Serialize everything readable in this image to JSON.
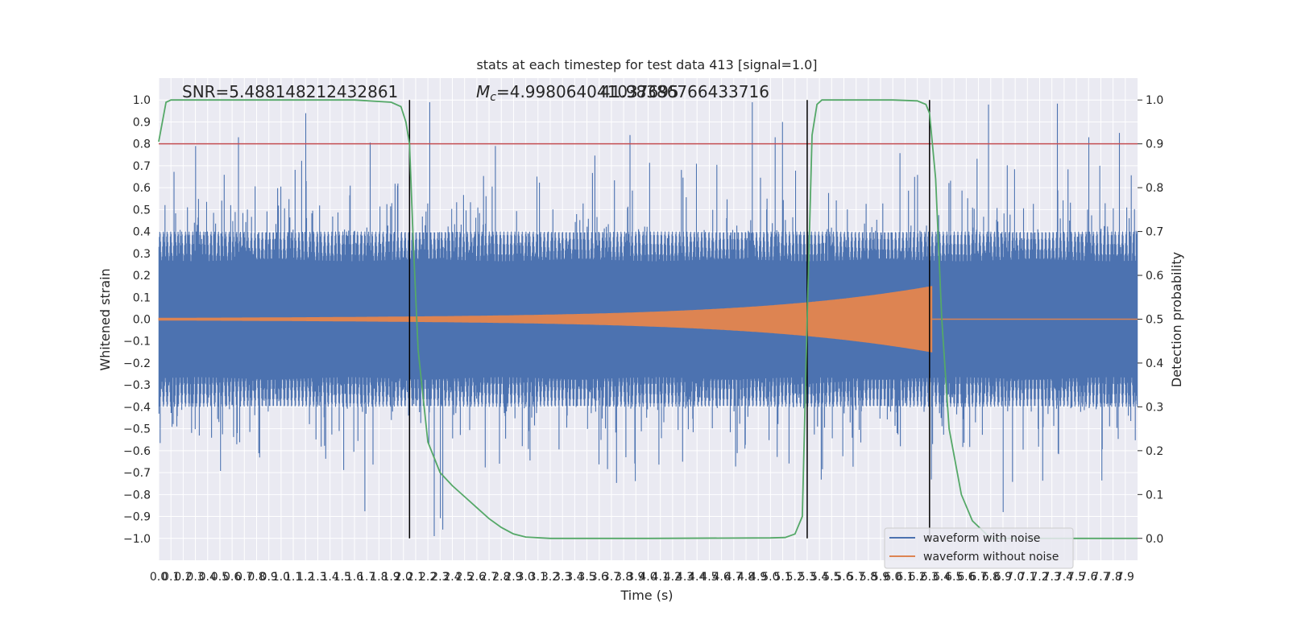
{
  "chart_data": {
    "type": "line",
    "title": "stats at each timestep for test data 413 [signal=1.0]",
    "xlabel": "Time (s)",
    "ylabel_left": "Whitened strain",
    "ylabel_right": "Detection probability",
    "xlim": [
      0,
      8.0
    ],
    "ylim_left": [
      -1.1,
      1.1
    ],
    "ylim_right": [
      -0.05,
      1.05
    ],
    "x_ticks": [
      "0.0",
      "0.1",
      "0.2",
      "0.3",
      "0.4",
      "0.5",
      "0.6",
      "0.7",
      "0.8",
      "0.9",
      "1.0",
      "1.1",
      "1.2",
      "1.3",
      "1.4",
      "1.5",
      "1.6",
      "1.7",
      "1.8",
      "1.9",
      "2.0",
      "2.1",
      "2.2",
      "2.3",
      "2.4",
      "2.5",
      "2.6",
      "2.7",
      "2.8",
      "2.9",
      "3.0",
      "3.1",
      "3.2",
      "3.3",
      "3.4",
      "3.5",
      "3.6",
      "3.7",
      "3.8",
      "3.9",
      "4.0",
      "4.1",
      "4.2",
      "4.3",
      "4.4",
      "4.5",
      "4.6",
      "4.7",
      "4.8",
      "4.9",
      "5.0",
      "5.1",
      "5.2",
      "5.3",
      "5.4",
      "5.5",
      "5.6",
      "5.7",
      "5.8",
      "5.9",
      "6.0",
      "6.1",
      "6.2",
      "6.3",
      "6.4",
      "6.5",
      "6.6",
      "6.7",
      "6.8",
      "6.9",
      "7.0",
      "7.1",
      "7.2",
      "7.3",
      "7.4",
      "7.5",
      "7.6",
      "7.7",
      "7.8",
      "7.9"
    ],
    "y_ticks_left": [
      "1.0",
      "0.9",
      "0.8",
      "0.7",
      "0.6",
      "0.5",
      "0.4",
      "0.3",
      "0.2",
      "0.1",
      "0.0",
      "−0.1",
      "−0.2",
      "−0.3",
      "−0.4",
      "−0.5",
      "−0.6",
      "−0.7",
      "−0.8",
      "−0.9",
      "−1.0"
    ],
    "y_ticks_right": [
      "1.0",
      "0.9",
      "0.8",
      "0.7",
      "0.6",
      "0.5",
      "0.4",
      "0.3",
      "0.2",
      "0.1",
      "0.0"
    ],
    "grid": true,
    "legend_placement": "lower-right",
    "legend": [
      "waveform with noise",
      "waveform without noise"
    ],
    "annotations": {
      "snr": "SNR=5.488148212432861",
      "mc": "=4.998064041037695",
      "mc_symbol": "M",
      "mc_sub": "c",
      "overlap_value": "41.98386766433716"
    },
    "threshold": 0.9,
    "vertical_lines": [
      2.05,
      5.3,
      6.3
    ],
    "detection_probability": {
      "x": [
        0.0,
        0.06,
        0.1,
        0.2,
        0.4,
        0.8,
        1.2,
        1.6,
        1.9,
        1.98,
        2.02,
        2.05,
        2.08,
        2.12,
        2.2,
        2.3,
        2.4,
        2.5,
        2.6,
        2.7,
        2.8,
        2.9,
        3.0,
        3.2,
        4.0,
        5.0,
        5.12,
        5.2,
        5.26,
        5.3,
        5.34,
        5.38,
        5.42,
        5.5,
        6.0,
        6.2,
        6.27,
        6.3,
        6.35,
        6.4,
        6.46,
        6.56,
        6.65,
        6.8,
        7.2,
        8.0
      ],
      "y": [
        0.905,
        0.995,
        1.0,
        1.0,
        1.0,
        1.0,
        1.0,
        1.0,
        0.995,
        0.985,
        0.95,
        0.9,
        0.68,
        0.43,
        0.22,
        0.15,
        0.12,
        0.095,
        0.07,
        0.045,
        0.025,
        0.01,
        0.003,
        0.0,
        0.0,
        0.001,
        0.002,
        0.01,
        0.05,
        0.5,
        0.92,
        0.99,
        1.0,
        1.0,
        1.0,
        0.998,
        0.99,
        0.97,
        0.82,
        0.5,
        0.25,
        0.1,
        0.04,
        0.0,
        0.0,
        0.0
      ]
    },
    "series": [
      {
        "name": "waveform with noise",
        "color": "#4c72b0",
        "style": "whitened strain noise, peaks approx ±0.6 with spikes to ±0.98"
      },
      {
        "name": "waveform without noise",
        "color": "#dd8452",
        "style": "chirp, amplitude 0.005 at t=0 rising to 0.12 at t=6.3, zero after"
      }
    ],
    "colors": {
      "noise": "#4c72b0",
      "clean": "#dd8452",
      "probability": "#55a868",
      "threshold": "#c44e52",
      "plot_bg": "#eaeaf2",
      "grid": "#ffffff"
    }
  }
}
